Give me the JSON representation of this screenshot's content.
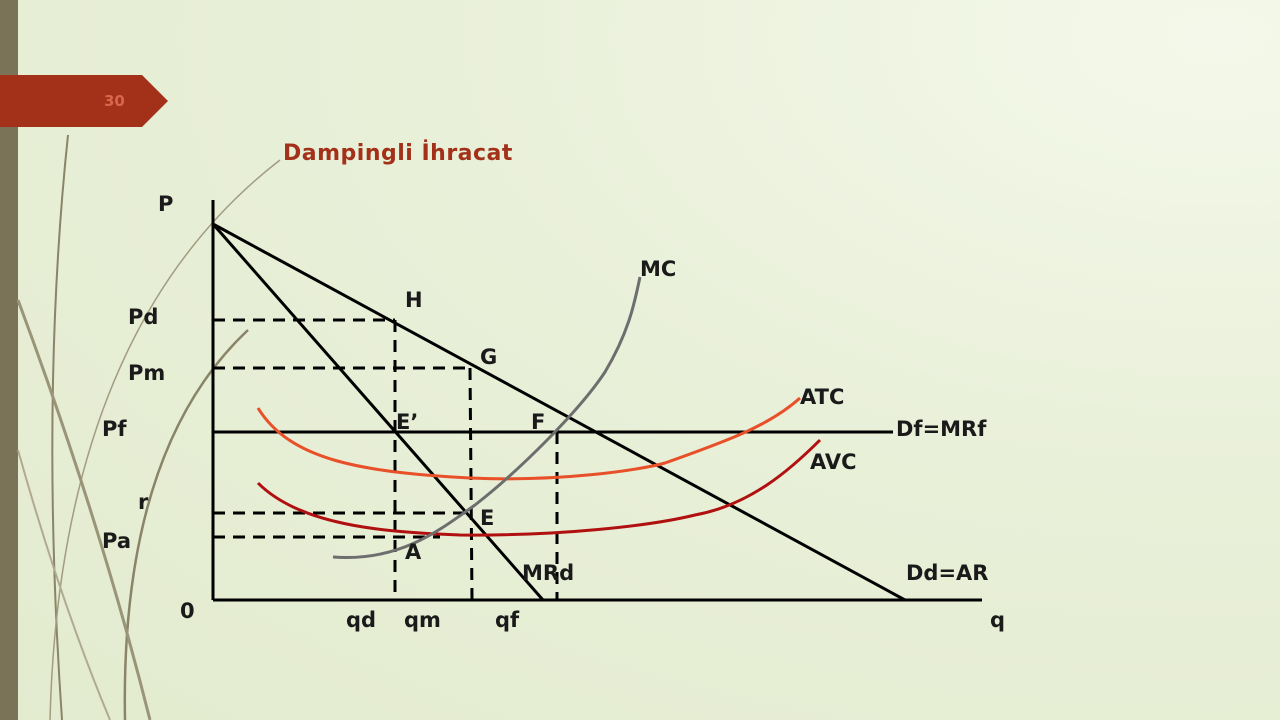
{
  "slide": {
    "page_number": "30",
    "title": "Dampingli İhracat"
  },
  "diagram": {
    "axis_labels": {
      "y": "P",
      "x": "q",
      "origin": "0"
    },
    "price_labels": {
      "pd": "Pd",
      "pm": "Pm",
      "pf": "Pf",
      "r": "r",
      "pa": "Pa"
    },
    "quantity_labels": {
      "qd": "qd",
      "qm": "qm",
      "qf": "qf"
    },
    "point_labels": {
      "h": "H",
      "g": "G",
      "e_prime": "E’",
      "f": "F",
      "e": "E",
      "a": "A"
    },
    "curve_labels": {
      "mc": "MC",
      "atc": "ATC",
      "avc": "AVC",
      "df": "Df=MRf",
      "mrd": "MRd",
      "dd": "Dd=AR"
    },
    "colors": {
      "accent": "#a3311a",
      "mc": "#6e6e6e",
      "atc": "#e8502a",
      "avc": "#b01010",
      "lines": "#000000"
    }
  }
}
